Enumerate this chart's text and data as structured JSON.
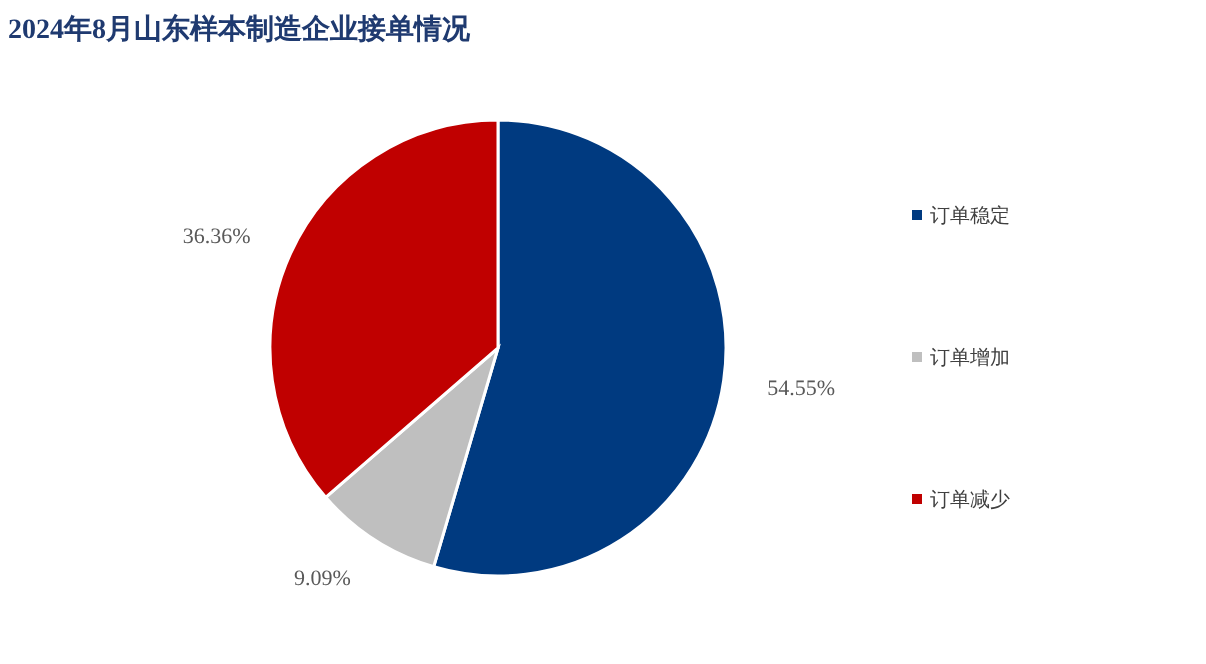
{
  "chart_data": {
    "type": "pie",
    "title": "2024年8月山东样本制造企业接单情况",
    "categories": [
      "订单稳定",
      "订单增加",
      "订单减少"
    ],
    "values": [
      54.55,
      9.09,
      36.36
    ],
    "colors": [
      "#003a80",
      "#bfbfbf",
      "#c00000"
    ],
    "value_labels": [
      "54.55%",
      "9.09%",
      "36.36%"
    ],
    "legend": "right"
  }
}
